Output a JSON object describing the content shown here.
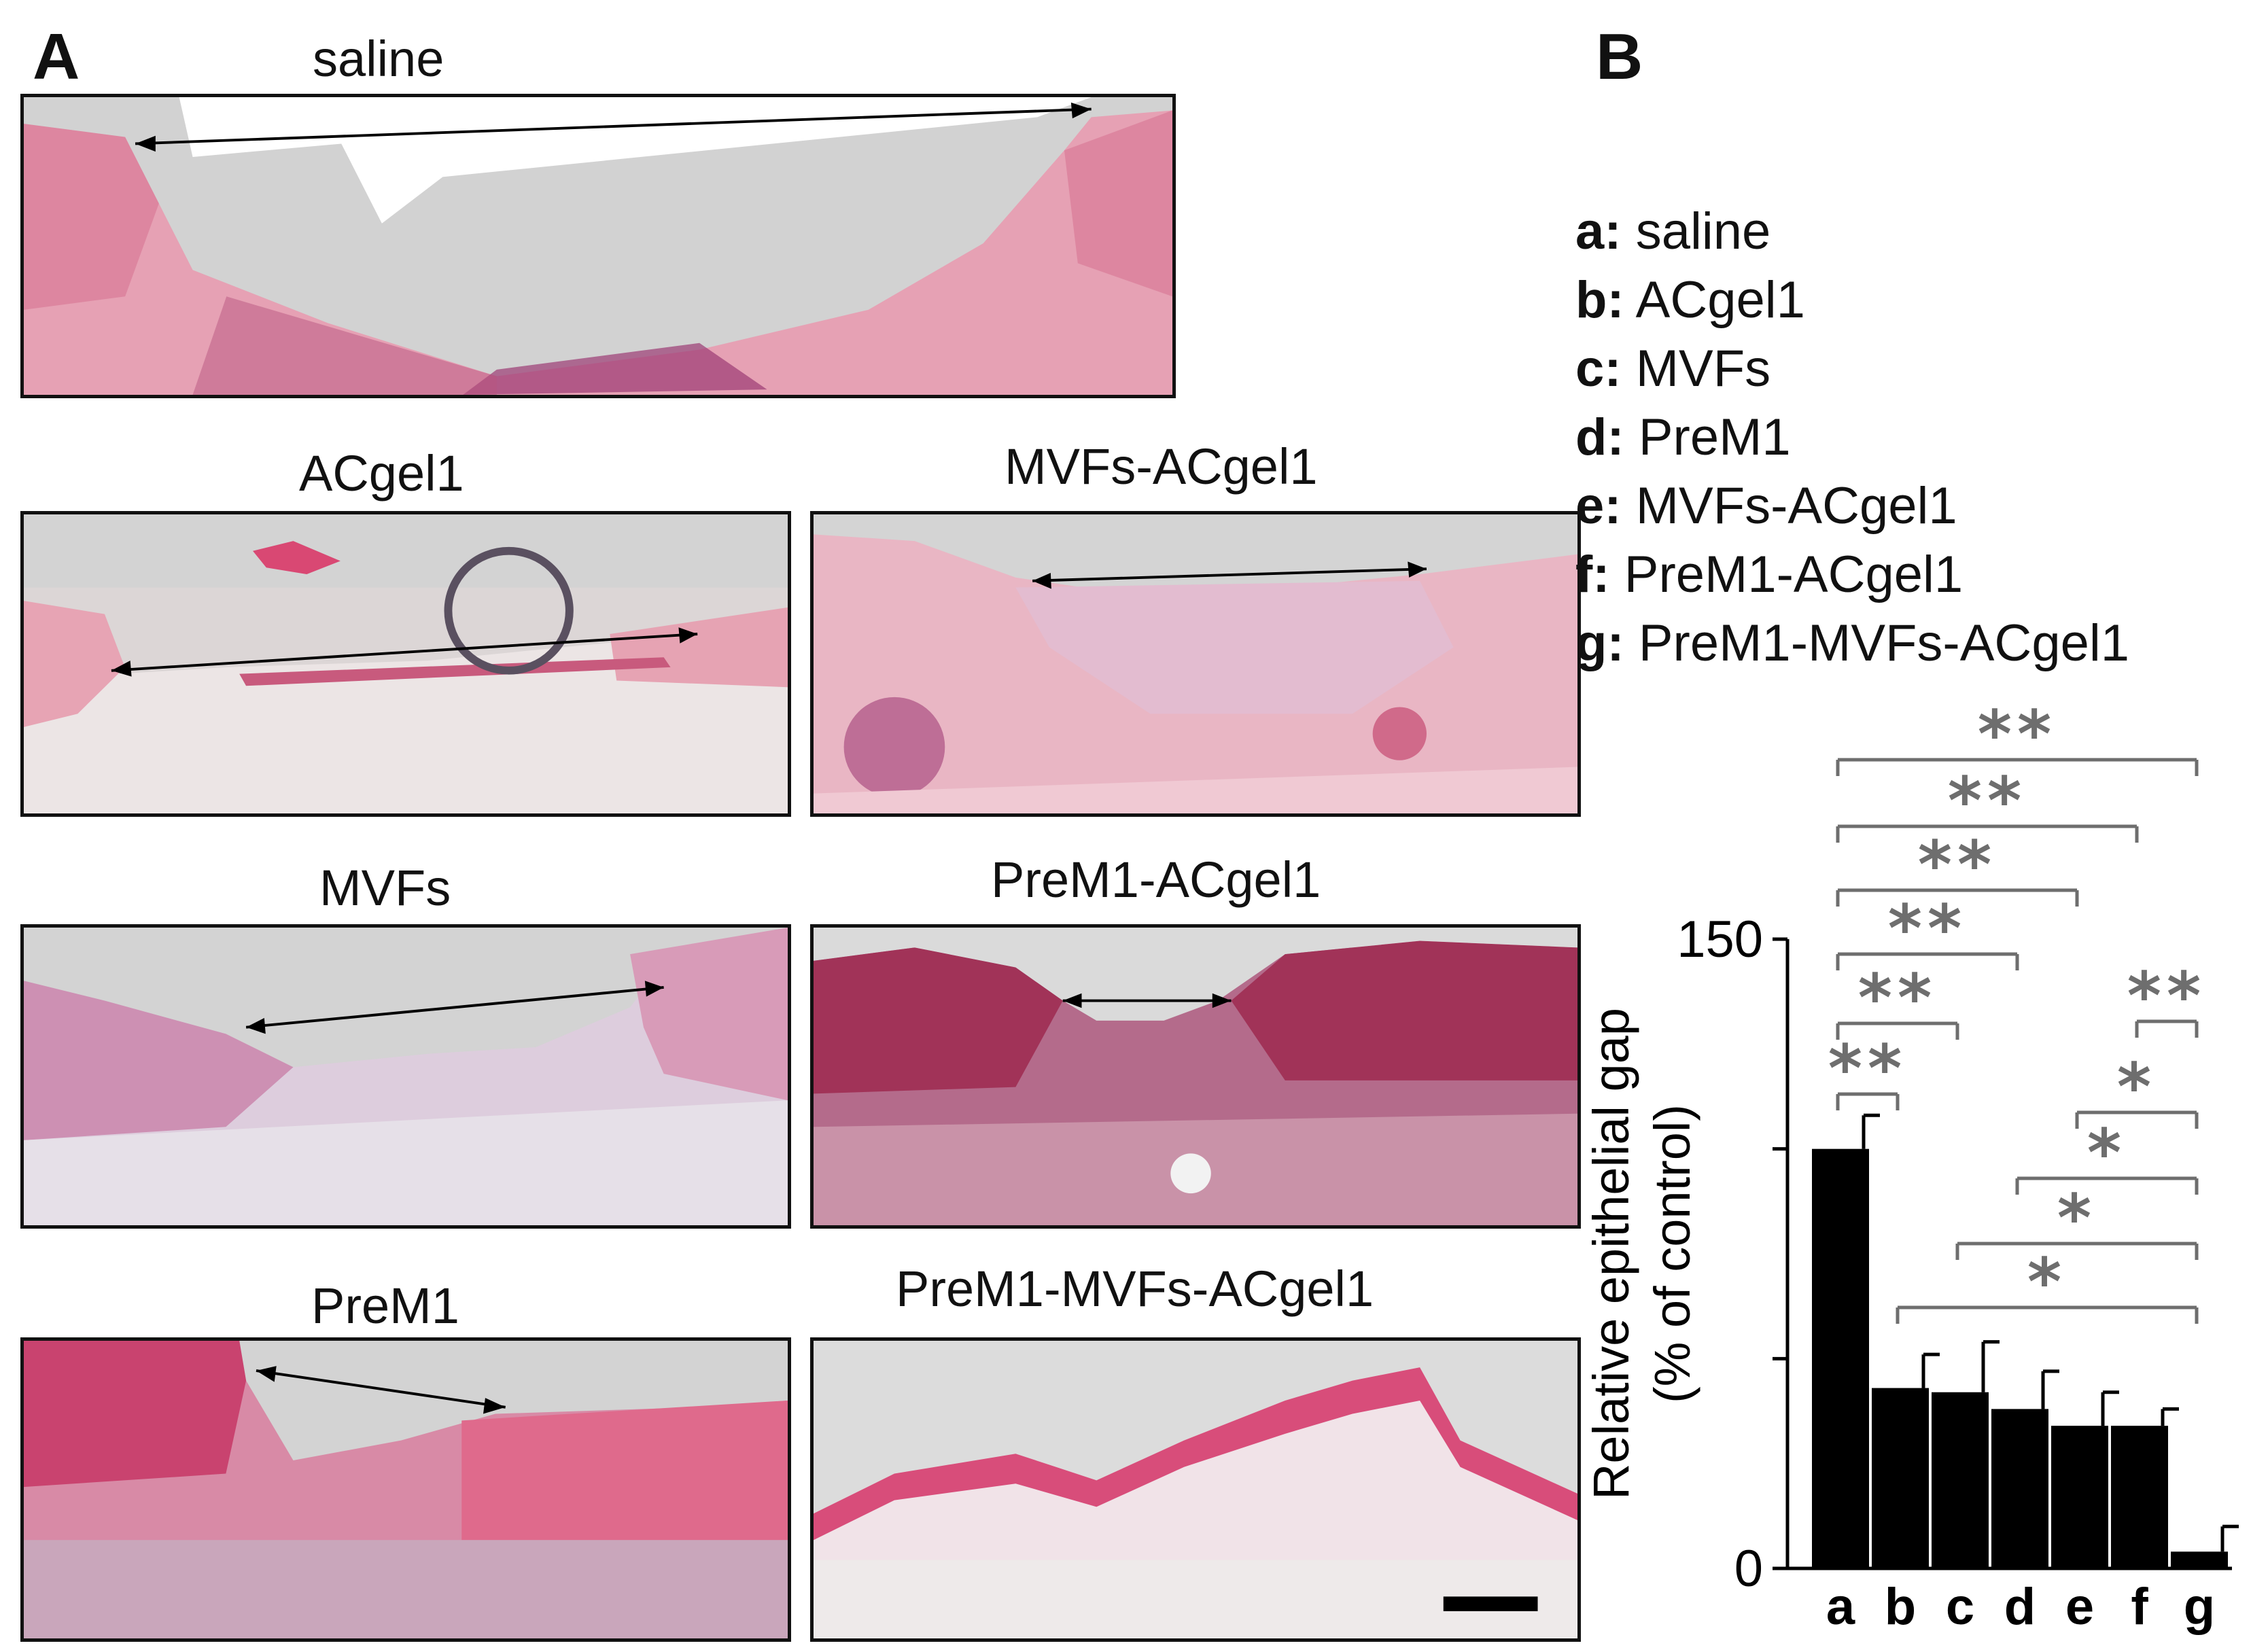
{
  "panel_a": {
    "letter": "A",
    "images": [
      {
        "title": "saline"
      },
      {
        "title": "ACgel1"
      },
      {
        "title": "MVFs-ACgel1"
      },
      {
        "title": "MVFs"
      },
      {
        "title": "PreM1-ACgel1"
      },
      {
        "title": "PreM1"
      },
      {
        "title": "PreM1-MVFs-ACgel1"
      }
    ]
  },
  "panel_b": {
    "letter": "B",
    "legend": [
      {
        "key": "a:",
        "label": "saline"
      },
      {
        "key": "b:",
        "label": "ACgel1"
      },
      {
        "key": "c:",
        "label": "MVFs"
      },
      {
        "key": "d:",
        "label": "PreM1"
      },
      {
        "key": "e:",
        "label": "MVFs-ACgel1"
      },
      {
        "key": "f:",
        "label": "PreM1-ACgel1"
      },
      {
        "key": "g:",
        "label": "PreM1-MVFs-ACgel1"
      }
    ]
  },
  "chart_data": {
    "type": "bar",
    "title": "",
    "xlabel": "",
    "ylabel": "Relative epithelial gap",
    "ylabel2": "(% of control)",
    "ylim": [
      0,
      150
    ],
    "yticks": [
      0,
      150
    ],
    "categories": [
      "a",
      "b",
      "c",
      "d",
      "e",
      "f",
      "g"
    ],
    "values": [
      100,
      43,
      42,
      38,
      34,
      34,
      4
    ],
    "errors": [
      8,
      8,
      12,
      9,
      8,
      4,
      6
    ],
    "bar_color": "#000000",
    "significance": [
      {
        "from": "a",
        "to": "b",
        "label": "**"
      },
      {
        "from": "a",
        "to": "c",
        "label": "**"
      },
      {
        "from": "a",
        "to": "d",
        "label": "**"
      },
      {
        "from": "a",
        "to": "e",
        "label": "**"
      },
      {
        "from": "a",
        "to": "f",
        "label": "**"
      },
      {
        "from": "a",
        "to": "g",
        "label": "**"
      },
      {
        "from": "f",
        "to": "g",
        "label": "**"
      },
      {
        "from": "e",
        "to": "g",
        "label": "*"
      },
      {
        "from": "d",
        "to": "g",
        "label": "*"
      },
      {
        "from": "c",
        "to": "g",
        "label": "*"
      },
      {
        "from": "b",
        "to": "g",
        "label": "*"
      }
    ],
    "significance_color": "#6e6e6e"
  }
}
